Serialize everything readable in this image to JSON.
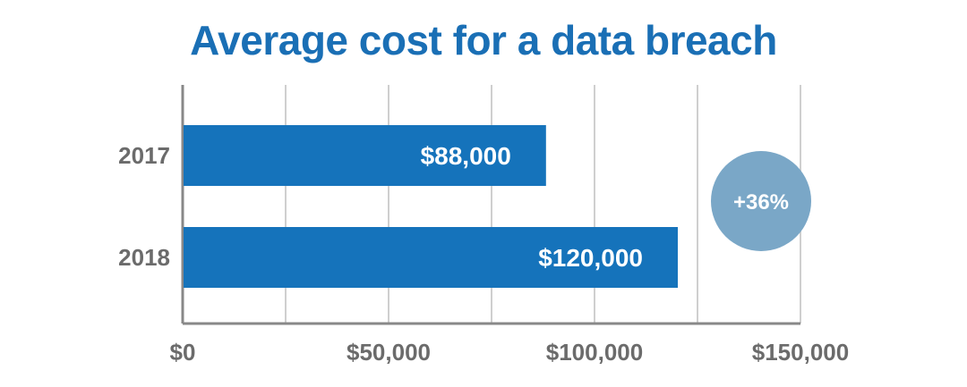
{
  "title": "Average cost for a data breach",
  "badge": {
    "text": "+36%",
    "color": "#7aa7c7"
  },
  "colors": {
    "title": "#1a6fb5",
    "bar": "#1573bb",
    "grid": "#cfcfcf",
    "axis": "#888888",
    "text": "#6b6b6b"
  },
  "chart_data": {
    "type": "bar",
    "orientation": "horizontal",
    "title": "Average cost for a data breach",
    "categories": [
      "2017",
      "2018"
    ],
    "values": [
      88000,
      120000
    ],
    "value_labels": [
      "$88,000",
      "$120,000"
    ],
    "xlim": [
      0,
      150000
    ],
    "x_ticks": [
      0,
      50000,
      100000,
      150000
    ],
    "x_tick_labels": [
      "$0",
      "$50,000",
      "$100,000",
      "$150,000"
    ],
    "grid": true,
    "xlabel": "",
    "ylabel": ""
  }
}
